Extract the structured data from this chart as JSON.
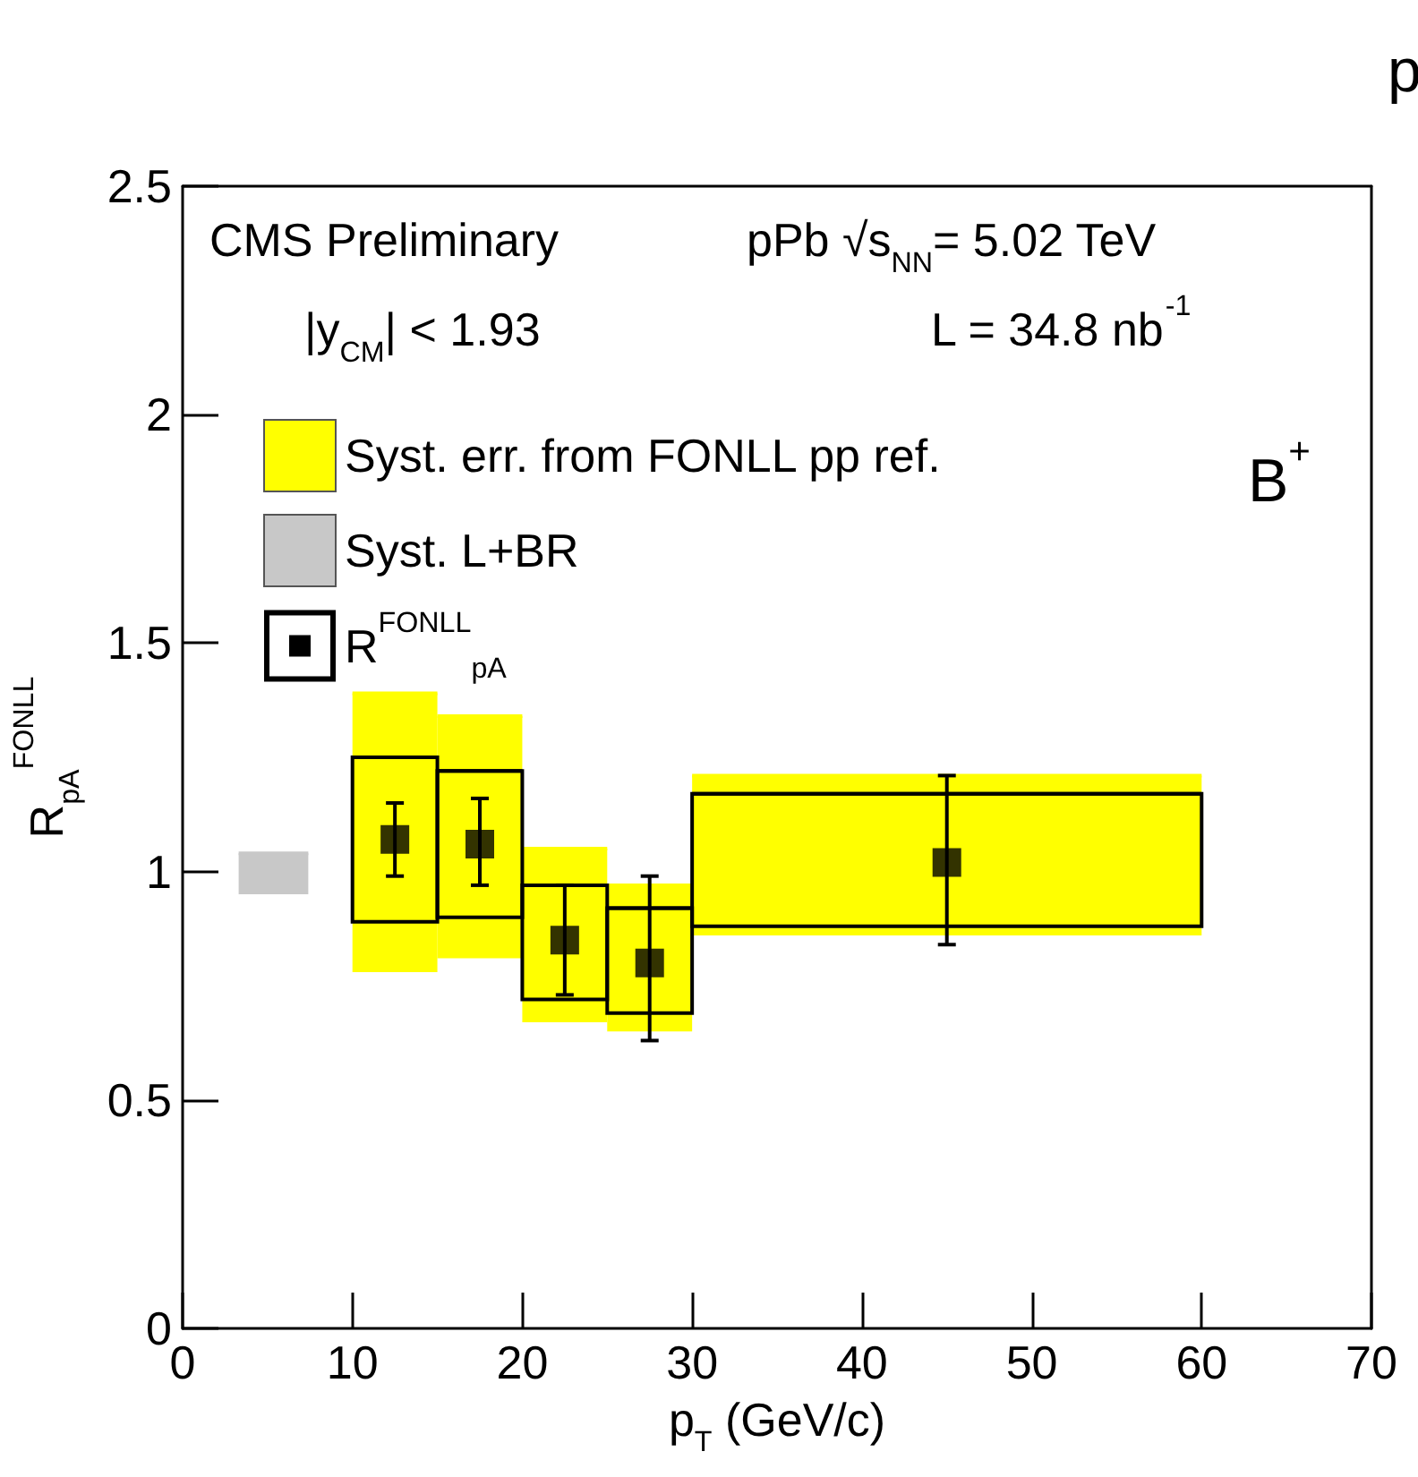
{
  "chart_data": {
    "type": "scatter",
    "xlabel": "p$_{T}$ (GeV/c)",
    "ylabel": "R$_{pA}$$^{FONLL}$",
    "annotations": [
      "CMS Preliminary",
      "pPb √s$_{NN}$= 5.02 TeV",
      "|y$_{CM}$| < 1.93",
      "L = 34.8 nb$^{-1}$",
      "B$^{+}$",
      "p"
    ],
    "series": [
      {
        "name": "Syst. err. from FONLL pp ref.",
        "type": "bar",
        "color": "#ffff00",
        "x": [
          12.5,
          17.5,
          22.5,
          27.5,
          45
        ],
        "base": [
          0.78,
          0.81,
          0.67,
          0.65,
          0.86
        ],
        "values": [
          0.61,
          0.53,
          0.38,
          0.32,
          0.35
        ],
        "xerrors": [
          2.5,
          2.5,
          2.5,
          2.5,
          15
        ]
      },
      {
        "name": "Syst. L+BR",
        "type": "bar",
        "color": "#c8c8c8",
        "x": [
          5.35
        ],
        "base": [
          0.95
        ],
        "values": [
          0.09
        ],
        "xerrors": [
          2.05
        ]
      },
      {
        "type": "bar",
        "color": "#000000",
        "x": [
          12.5,
          17.5,
          22.5,
          27.5,
          45
        ],
        "base": [
          0.89,
          0.9,
          0.72,
          0.69,
          0.88
        ],
        "values": [
          0.36,
          0.32,
          0.25,
          0.23,
          0.29
        ],
        "xerrors": [
          2.5,
          2.5,
          2.5,
          2.5,
          15
        ]
      },
      {
        "name": "R$^{FONLL}$$_{pA}$",
        "color": "#000000",
        "marker": "square",
        "x": [
          12.5,
          17.5,
          22.5,
          27.5,
          45
        ],
        "values": [
          1.07,
          1.06,
          0.85,
          0.8,
          1.02
        ],
        "errors": [
          [
            0.99,
            1.15
          ],
          [
            0.97,
            1.16
          ],
          [
            0.73,
            0.97
          ],
          [
            0.63,
            0.99
          ],
          [
            0.84,
            1.21
          ]
        ]
      }
    ],
    "xlim": [
      0,
      70
    ],
    "xticks": [
      0,
      10,
      20,
      30,
      40,
      50,
      60,
      70
    ],
    "ylim": [
      0,
      2.5
    ],
    "yticks": [
      0,
      0.5,
      1,
      1.5,
      2,
      2.5
    ],
    "grid": false,
    "legend": "top left"
  }
}
